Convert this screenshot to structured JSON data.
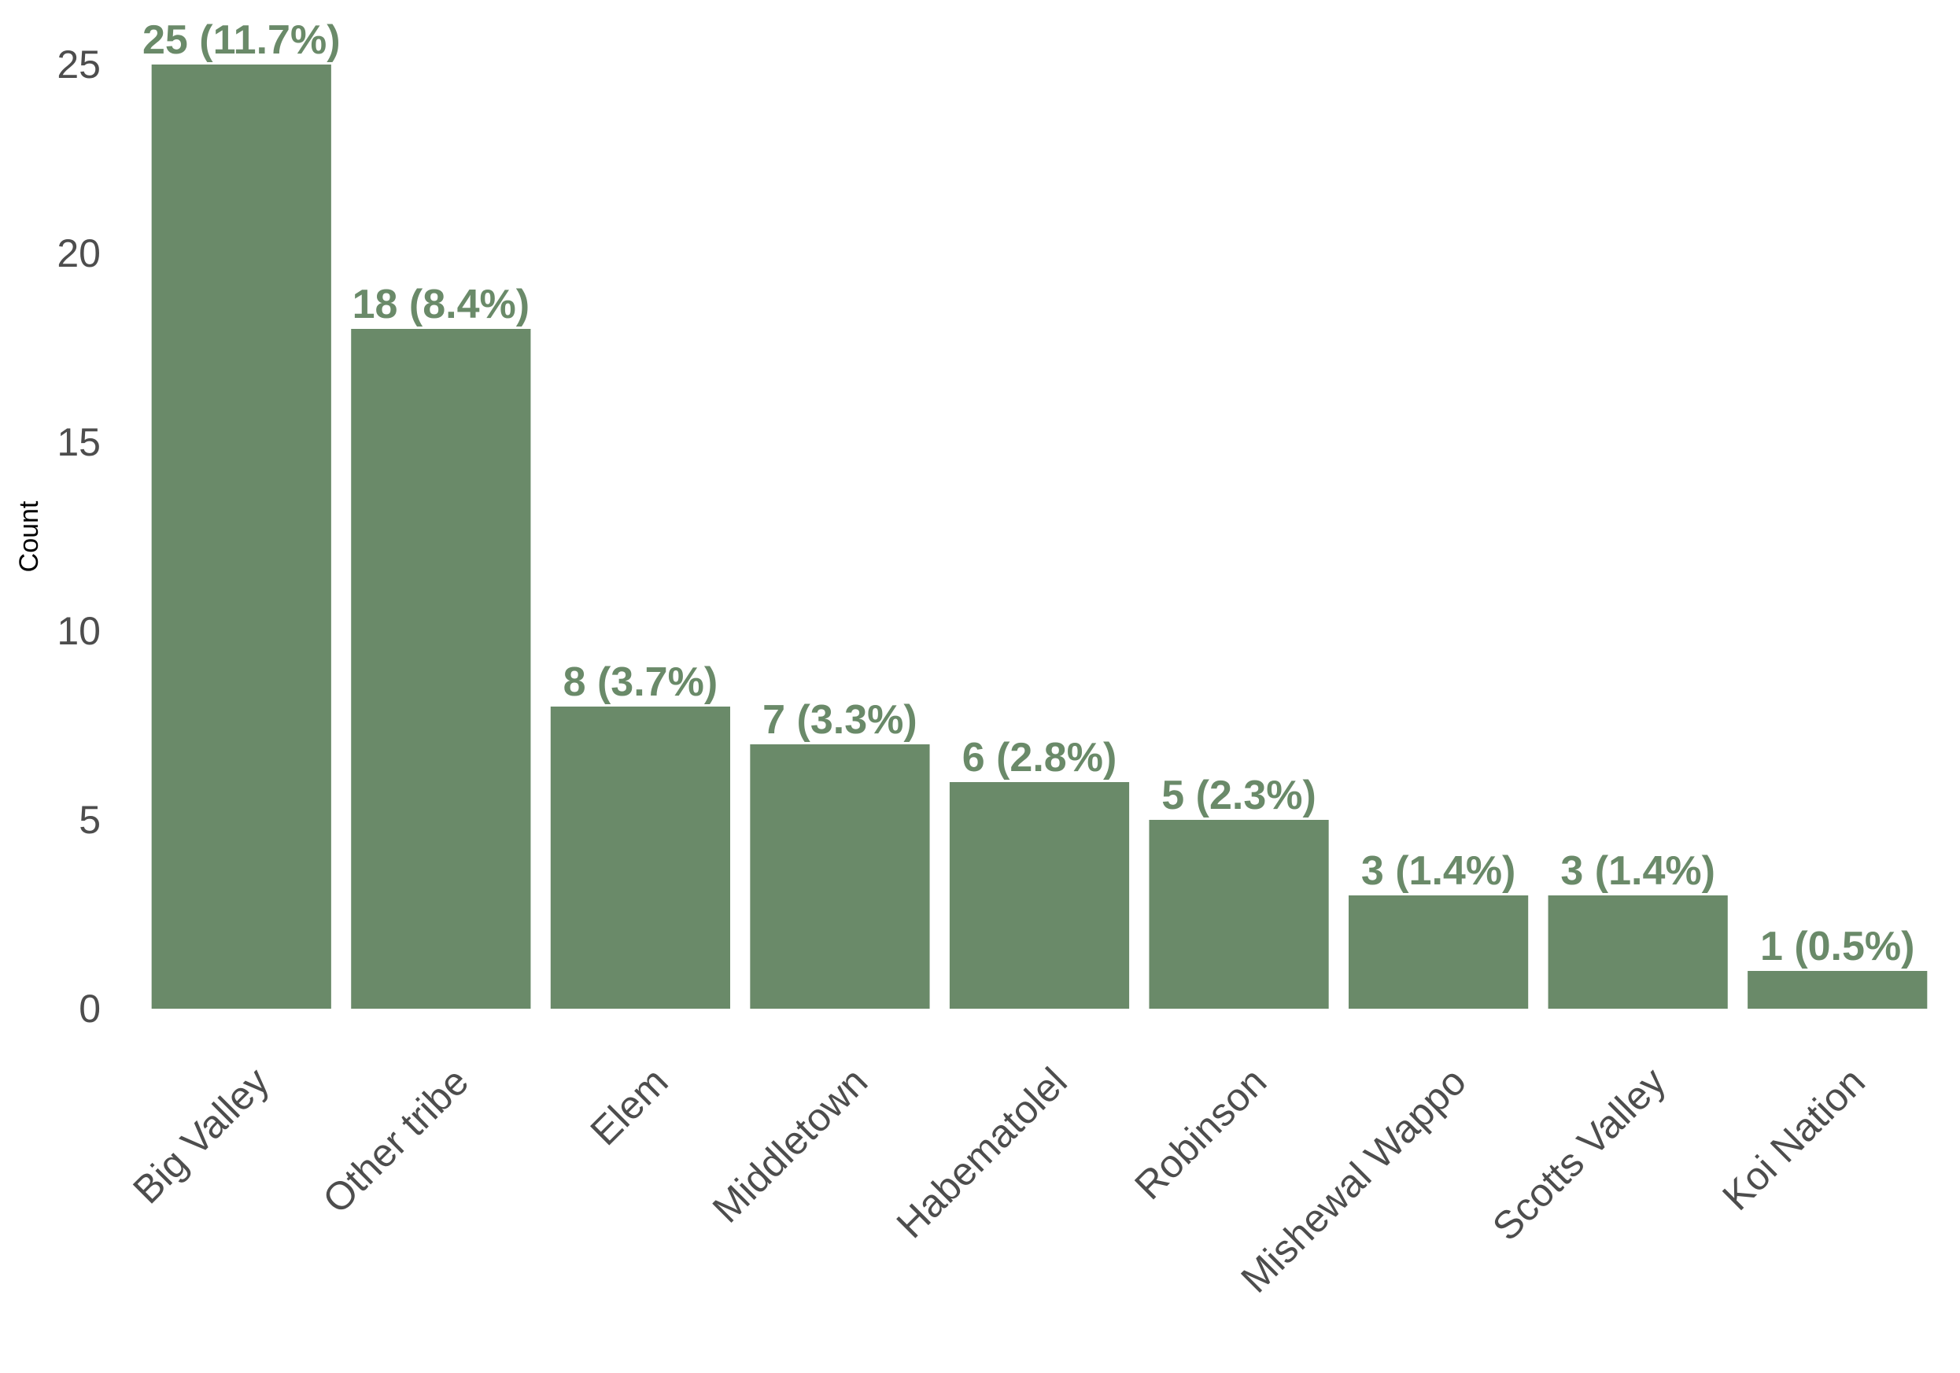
{
  "chart_data": {
    "type": "bar",
    "title": "",
    "xlabel": "",
    "ylabel": "Count",
    "ylim": [
      0,
      25
    ],
    "yticks": [
      0,
      5,
      10,
      15,
      20,
      25
    ],
    "grid": false,
    "categories": [
      "Big Valley",
      "Other tribe",
      "Elem",
      "Middletown",
      "Habematolel",
      "Robinson",
      "Mishewal Wappo",
      "Scotts Valley",
      "Koi Nation"
    ],
    "values": [
      25,
      18,
      8,
      7,
      6,
      5,
      3,
      3,
      1
    ],
    "data_labels": [
      "25 (11.7%)",
      "18 (8.4%)",
      "8 (3.7%)",
      "7 (3.3%)",
      "6 (2.8%)",
      "5 (2.3%)",
      "3 (1.4%)",
      "3 (1.4%)",
      "1 (0.5%)"
    ],
    "bar_color": "#6a8a69",
    "label_color": "#6a8a69"
  }
}
